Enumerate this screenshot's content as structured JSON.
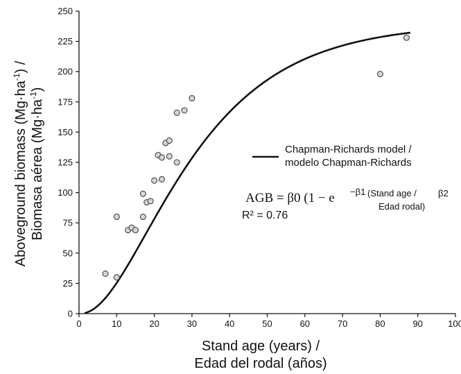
{
  "chart_data": {
    "type": "scatter",
    "xlim": [
      0,
      100
    ],
    "ylim": [
      0,
      250
    ],
    "x_ticks": [
      0,
      10,
      20,
      30,
      40,
      50,
      60,
      70,
      80,
      90,
      100
    ],
    "y_ticks": [
      0,
      25,
      50,
      75,
      100,
      125,
      150,
      175,
      200,
      225,
      250
    ],
    "xlabel_lines": [
      "Stand age (years) /",
      "Edad del rodal (años)"
    ],
    "ylabel_line1": {
      "text": "Aboveground biomass (Mg·ha",
      "sup": "-1",
      "tail": ") /"
    },
    "ylabel_line2": {
      "text": "Biomasa aérea (Mg·ha",
      "sup": "-1",
      "tail": ")"
    },
    "grid": false,
    "points": [
      {
        "x": 7,
        "y": 33
      },
      {
        "x": 10,
        "y": 30
      },
      {
        "x": 10,
        "y": 80
      },
      {
        "x": 13,
        "y": 69
      },
      {
        "x": 14,
        "y": 71
      },
      {
        "x": 15,
        "y": 69
      },
      {
        "x": 17,
        "y": 80
      },
      {
        "x": 17,
        "y": 99
      },
      {
        "x": 18,
        "y": 92
      },
      {
        "x": 19,
        "y": 93
      },
      {
        "x": 20,
        "y": 110
      },
      {
        "x": 21,
        "y": 131
      },
      {
        "x": 22,
        "y": 111
      },
      {
        "x": 22,
        "y": 129
      },
      {
        "x": 23,
        "y": 141
      },
      {
        "x": 24,
        "y": 130
      },
      {
        "x": 24,
        "y": 143
      },
      {
        "x": 26,
        "y": 125
      },
      {
        "x": 26,
        "y": 166
      },
      {
        "x": 28,
        "y": 168
      },
      {
        "x": 30,
        "y": 178
      },
      {
        "x": 80,
        "y": 198
      },
      {
        "x": 87,
        "y": 228
      }
    ],
    "model": {
      "name_lines": [
        "Chapman-Richards model /",
        "modelo Chapman-Richards"
      ],
      "legend_position": "right-middle",
      "beta0": 240,
      "beta1": 0.0485,
      "beta2": 2.35,
      "x_range": [
        1.5,
        88
      ]
    },
    "equation": {
      "main": "AGB = β0 (1 − e",
      "exp": "−β1",
      "exp_note_line1": "(Stand age /",
      "exp_note_line2": "Edad rodal)",
      "beta2": "β2",
      "r2_label": "R² = 0.76"
    }
  }
}
